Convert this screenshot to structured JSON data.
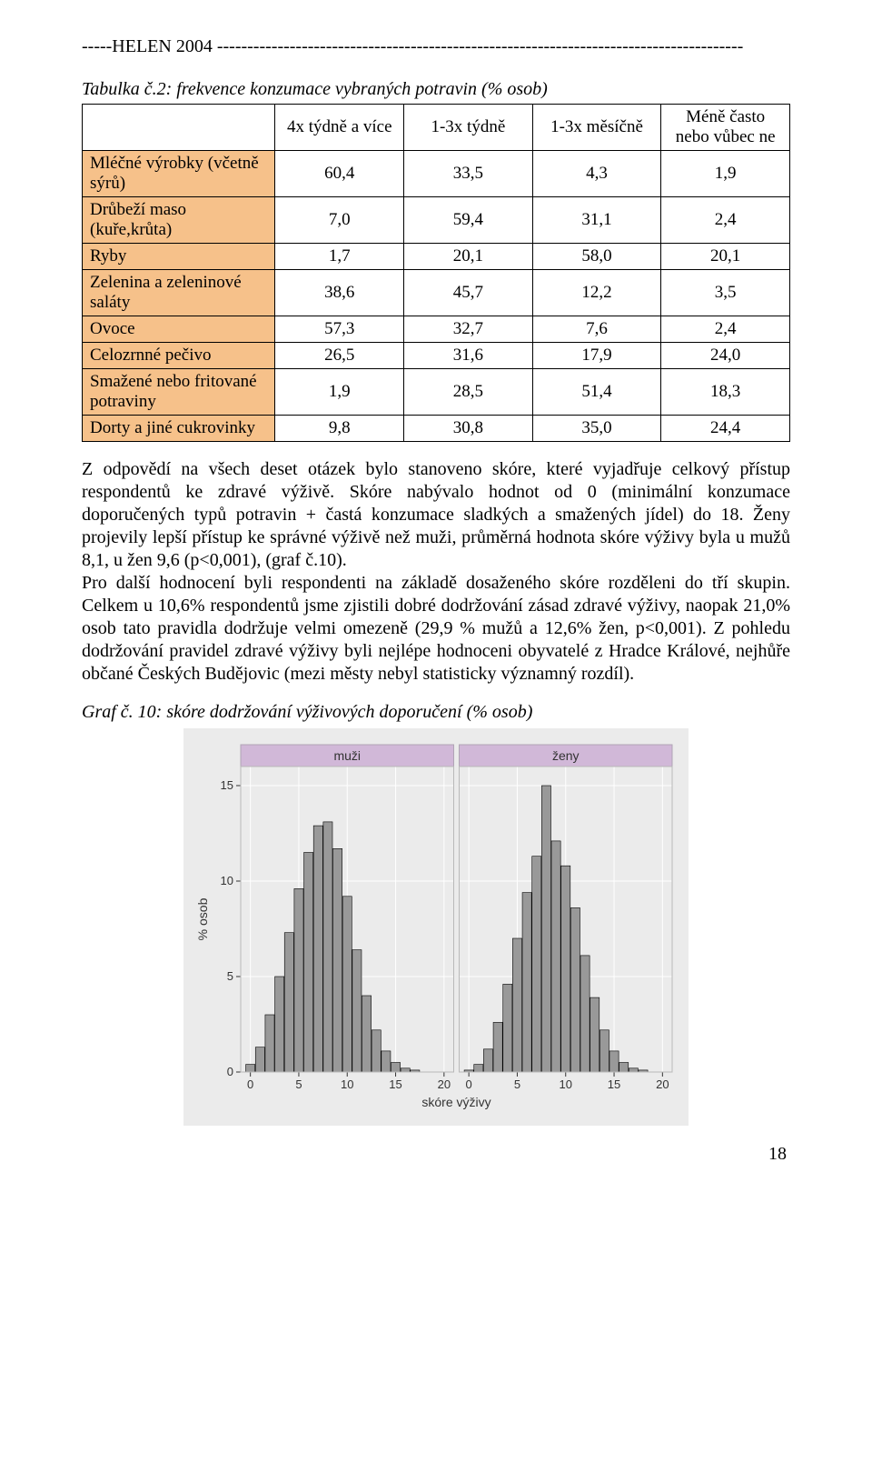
{
  "header_line": "-----HELEN 2004 ---------------------------------------------------------------------------------------",
  "table_title": "Tabulka č.2: frekvence konzumace vybraných potravin (% osob)",
  "table": {
    "columns": [
      "",
      "4x týdně a více",
      "1-3x týdně",
      "1-3x měsíčně",
      "Méně často nebo vůbec ne"
    ],
    "rowlabel_bg": "#f6c18a",
    "header_bg": "#ffffff",
    "rows": [
      {
        "label": "Mléčné výrobky (včetně sýrů)",
        "vals": [
          "60,4",
          "33,5",
          "4,3",
          "1,9"
        ]
      },
      {
        "label": "Drůbeží maso (kuře,krůta)",
        "vals": [
          "7,0",
          "59,4",
          "31,1",
          "2,4"
        ]
      },
      {
        "label": "Ryby",
        "vals": [
          "1,7",
          "20,1",
          "58,0",
          "20,1"
        ]
      },
      {
        "label": "Zelenina a zeleninové saláty",
        "vals": [
          "38,6",
          "45,7",
          "12,2",
          "3,5"
        ]
      },
      {
        "label": "Ovoce",
        "vals": [
          "57,3",
          "32,7",
          "7,6",
          "2,4"
        ]
      },
      {
        "label": "Celozrnné pečivo",
        "vals": [
          "26,5",
          "31,6",
          "17,9",
          "24,0"
        ]
      },
      {
        "label": "Smažené nebo fritované potraviny",
        "vals": [
          "1,9",
          "28,5",
          "51,4",
          "18,3"
        ]
      },
      {
        "label": "Dorty a jiné cukrovinky",
        "vals": [
          "9,8",
          "30,8",
          "35,0",
          "24,4"
        ]
      }
    ]
  },
  "body_text": "Z odpovědí na všech deset otázek bylo stanoveno skóre, které vyjadřuje celkový přístup respondentů ke zdravé výživě. Skóre nabývalo hodnot od 0 (minimální konzumace doporučených typů potravin + častá konzumace sladkých a smažených jídel) do 18. Ženy projevily lepší přístup ke správné výživě než muži, průměrná hodnota skóre výživy byla u mužů 8,1, u žen 9,6 (p<0,001), (graf č.10).\nPro další hodnocení byli respondenti na základě dosaženého skóre rozděleni do tří skupin. Celkem u 10,6% respondentů jsme zjistili dobré dodržování zásad zdravé výživy, naopak 21,0% osob tato pravidla dodržuje velmi omezeně (29,9 % mužů a 12,6% žen, p<0,001). Z pohledu dodržování pravidel zdravé výživy byli nejlépe hodnoceni obyvatelé z Hradce Králové, nejhůře občané Českých Budějovic (mezi městy nebyl statisticky významný rozdíl).",
  "graf_title": "Graf č. 10: skóre dodržování výživových doporučení (% osob)",
  "chart": {
    "type": "grouped-histogram",
    "panel_bg": "#ebebeb",
    "panel_header_bg": "#d1b8d8",
    "panel_plot_bg": "#ebebeb",
    "bar_fill": "#999999",
    "bar_stroke": "#000000",
    "grid_color": "#ffffff",
    "ylabel": "% osob",
    "xlabel": "skóre výživy",
    "yticks": [
      0,
      5,
      10,
      15
    ],
    "ylim": [
      0,
      16
    ],
    "xticks": [
      0,
      5,
      10,
      15,
      20
    ],
    "xlim": [
      -1,
      21
    ],
    "panels": [
      {
        "title": "muži",
        "x": [
          0,
          1,
          2,
          3,
          4,
          5,
          6,
          7,
          8,
          9,
          10,
          11,
          12,
          13,
          14,
          15,
          16,
          17,
          18,
          19
        ],
        "y": [
          0.4,
          1.3,
          3.0,
          5.0,
          7.3,
          9.6,
          11.5,
          12.9,
          13.1,
          11.7,
          9.2,
          6.4,
          4.0,
          2.2,
          1.1,
          0.5,
          0.2,
          0.1,
          0.0,
          0.0
        ]
      },
      {
        "title": "ženy",
        "x": [
          0,
          1,
          2,
          3,
          4,
          5,
          6,
          7,
          8,
          9,
          10,
          11,
          12,
          13,
          14,
          15,
          16,
          17,
          18,
          19
        ],
        "y": [
          0.1,
          0.4,
          1.2,
          2.6,
          4.6,
          7.0,
          9.4,
          11.3,
          15.0,
          12.1,
          10.8,
          8.6,
          6.1,
          3.9,
          2.2,
          1.1,
          0.5,
          0.2,
          0.1,
          0.0
        ]
      }
    ]
  },
  "page_number": "18"
}
